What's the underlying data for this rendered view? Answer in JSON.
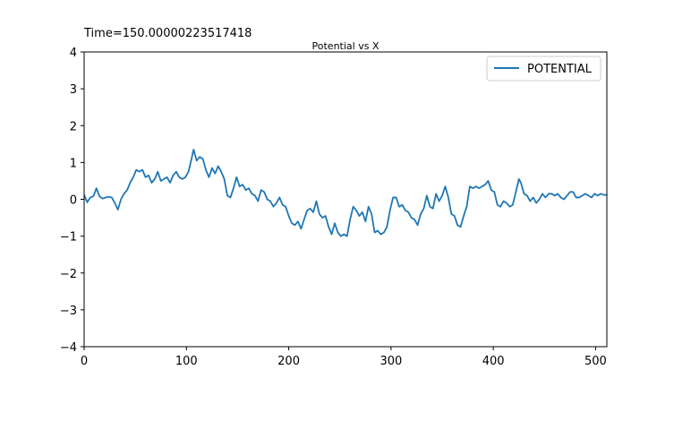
{
  "figure": {
    "time_label": "Time=150.00000223517418"
  },
  "chart_data": {
    "type": "line",
    "title": "Potential vs X",
    "xlabel": "",
    "ylabel": "",
    "xlim": [
      0,
      511
    ],
    "ylim": [
      -4,
      4
    ],
    "xticks": [
      0,
      100,
      200,
      300,
      400,
      500
    ],
    "yticks": [
      -4,
      -3,
      -2,
      -1,
      0,
      1,
      2,
      3,
      4
    ],
    "grid": false,
    "legend_position": "top-right",
    "series": [
      {
        "name": "POTENTIAL",
        "color": "#1f77b4",
        "points": [
          [
            0,
            0.12
          ],
          [
            3,
            -0.08
          ],
          [
            6,
            0.05
          ],
          [
            9,
            0.08
          ],
          [
            12,
            0.3
          ],
          [
            15,
            0.08
          ],
          [
            18,
            0.02
          ],
          [
            21,
            0.05
          ],
          [
            24,
            0.07
          ],
          [
            27,
            0.05
          ],
          [
            30,
            -0.1
          ],
          [
            33,
            -0.28
          ],
          [
            36,
            0.0
          ],
          [
            39,
            0.15
          ],
          [
            42,
            0.25
          ],
          [
            45,
            0.45
          ],
          [
            48,
            0.6
          ],
          [
            51,
            0.8
          ],
          [
            54,
            0.75
          ],
          [
            57,
            0.8
          ],
          [
            60,
            0.6
          ],
          [
            63,
            0.65
          ],
          [
            66,
            0.45
          ],
          [
            69,
            0.55
          ],
          [
            72,
            0.75
          ],
          [
            75,
            0.5
          ],
          [
            78,
            0.55
          ],
          [
            81,
            0.6
          ],
          [
            84,
            0.45
          ],
          [
            87,
            0.65
          ],
          [
            90,
            0.75
          ],
          [
            93,
            0.6
          ],
          [
            96,
            0.55
          ],
          [
            99,
            0.6
          ],
          [
            102,
            0.75
          ],
          [
            105,
            1.1
          ],
          [
            107,
            1.35
          ],
          [
            110,
            1.05
          ],
          [
            113,
            1.15
          ],
          [
            116,
            1.1
          ],
          [
            119,
            0.8
          ],
          [
            122,
            0.6
          ],
          [
            125,
            0.85
          ],
          [
            128,
            0.7
          ],
          [
            131,
            0.9
          ],
          [
            134,
            0.75
          ],
          [
            137,
            0.55
          ],
          [
            140,
            0.1
          ],
          [
            143,
            0.05
          ],
          [
            146,
            0.3
          ],
          [
            149,
            0.6
          ],
          [
            152,
            0.35
          ],
          [
            155,
            0.4
          ],
          [
            158,
            0.25
          ],
          [
            161,
            0.3
          ],
          [
            164,
            0.15
          ],
          [
            167,
            0.1
          ],
          [
            170,
            -0.05
          ],
          [
            173,
            0.25
          ],
          [
            176,
            0.2
          ],
          [
            179,
            0.0
          ],
          [
            182,
            -0.05
          ],
          [
            185,
            -0.2
          ],
          [
            188,
            -0.1
          ],
          [
            191,
            0.05
          ],
          [
            194,
            -0.15
          ],
          [
            197,
            -0.2
          ],
          [
            200,
            -0.45
          ],
          [
            203,
            -0.65
          ],
          [
            206,
            -0.7
          ],
          [
            209,
            -0.6
          ],
          [
            212,
            -0.8
          ],
          [
            215,
            -0.55
          ],
          [
            218,
            -0.3
          ],
          [
            221,
            -0.25
          ],
          [
            224,
            -0.35
          ],
          [
            227,
            -0.05
          ],
          [
            230,
            -0.4
          ],
          [
            233,
            -0.5
          ],
          [
            236,
            -0.45
          ],
          [
            239,
            -0.75
          ],
          [
            242,
            -0.95
          ],
          [
            245,
            -0.65
          ],
          [
            248,
            -0.9
          ],
          [
            251,
            -1.0
          ],
          [
            254,
            -0.95
          ],
          [
            257,
            -1.0
          ],
          [
            260,
            -0.55
          ],
          [
            263,
            -0.2
          ],
          [
            266,
            -0.3
          ],
          [
            269,
            -0.45
          ],
          [
            272,
            -0.35
          ],
          [
            275,
            -0.6
          ],
          [
            278,
            -0.2
          ],
          [
            281,
            -0.4
          ],
          [
            284,
            -0.9
          ],
          [
            287,
            -0.85
          ],
          [
            290,
            -0.95
          ],
          [
            293,
            -0.9
          ],
          [
            296,
            -0.75
          ],
          [
            299,
            -0.3
          ],
          [
            302,
            0.05
          ],
          [
            305,
            0.05
          ],
          [
            308,
            -0.2
          ],
          [
            311,
            -0.15
          ],
          [
            314,
            -0.3
          ],
          [
            317,
            -0.35
          ],
          [
            320,
            -0.5
          ],
          [
            323,
            -0.55
          ],
          [
            326,
            -0.7
          ],
          [
            329,
            -0.4
          ],
          [
            332,
            -0.25
          ],
          [
            335,
            0.1
          ],
          [
            338,
            -0.2
          ],
          [
            341,
            -0.25
          ],
          [
            344,
            0.15
          ],
          [
            347,
            -0.05
          ],
          [
            350,
            0.1
          ],
          [
            353,
            0.35
          ],
          [
            356,
            0.05
          ],
          [
            359,
            -0.4
          ],
          [
            362,
            -0.45
          ],
          [
            365,
            -0.7
          ],
          [
            368,
            -0.75
          ],
          [
            371,
            -0.45
          ],
          [
            374,
            -0.2
          ],
          [
            377,
            0.35
          ],
          [
            380,
            0.3
          ],
          [
            383,
            0.35
          ],
          [
            386,
            0.3
          ],
          [
            389,
            0.35
          ],
          [
            392,
            0.4
          ],
          [
            395,
            0.5
          ],
          [
            398,
            0.25
          ],
          [
            401,
            0.2
          ],
          [
            404,
            -0.15
          ],
          [
            407,
            -0.2
          ],
          [
            410,
            -0.05
          ],
          [
            413,
            -0.1
          ],
          [
            416,
            -0.2
          ],
          [
            419,
            -0.15
          ],
          [
            422,
            0.2
          ],
          [
            425,
            0.55
          ],
          [
            427,
            0.45
          ],
          [
            430,
            0.15
          ],
          [
            433,
            0.1
          ],
          [
            436,
            -0.05
          ],
          [
            439,
            0.05
          ],
          [
            442,
            -0.1
          ],
          [
            445,
            0.0
          ],
          [
            448,
            0.15
          ],
          [
            451,
            0.05
          ],
          [
            454,
            0.15
          ],
          [
            457,
            0.15
          ],
          [
            460,
            0.1
          ],
          [
            463,
            0.15
          ],
          [
            466,
            0.05
          ],
          [
            469,
            0.0
          ],
          [
            472,
            0.1
          ],
          [
            475,
            0.2
          ],
          [
            478,
            0.2
          ],
          [
            481,
            0.05
          ],
          [
            484,
            0.05
          ],
          [
            487,
            0.1
          ],
          [
            490,
            0.15
          ],
          [
            493,
            0.1
          ],
          [
            496,
            0.05
          ],
          [
            499,
            0.15
          ],
          [
            502,
            0.1
          ],
          [
            505,
            0.15
          ],
          [
            508,
            0.12
          ],
          [
            511,
            0.12
          ]
        ]
      }
    ]
  }
}
